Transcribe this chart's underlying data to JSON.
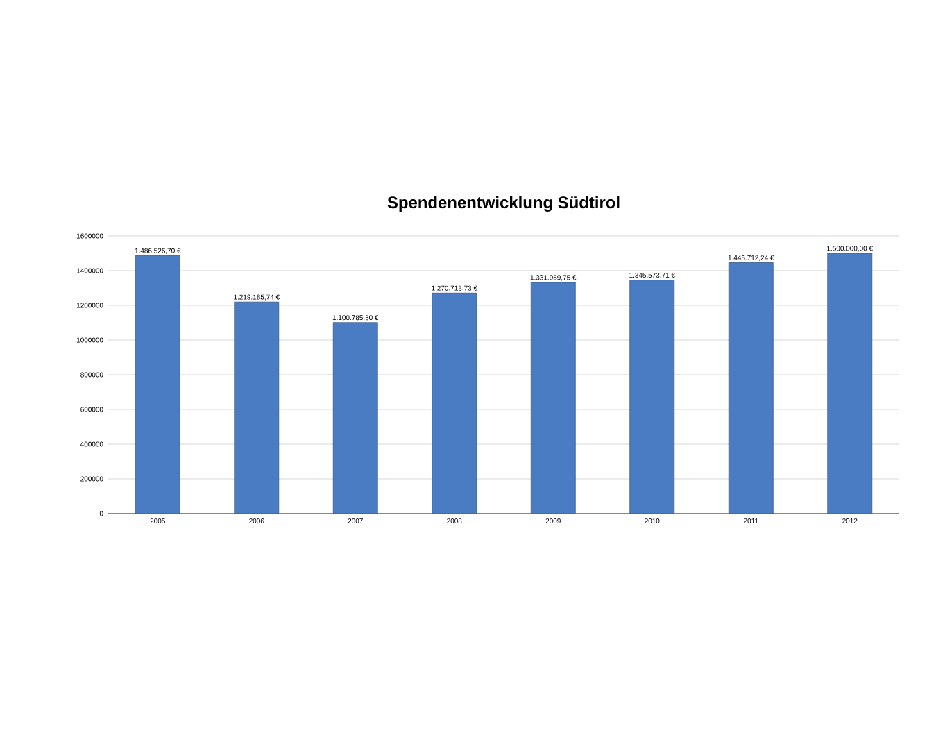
{
  "chart_data": {
    "type": "bar",
    "title": "Spendenentwicklung Südtirol",
    "categories": [
      "2005",
      "2006",
      "2007",
      "2008",
      "2009",
      "2010",
      "2011",
      "2012"
    ],
    "values": [
      1486526.7,
      1219185.74,
      1100785.3,
      1270713.73,
      1331959.75,
      1345573.71,
      1445712.24,
      1500000.0
    ],
    "value_labels": [
      "1.486.526,70 €",
      "1.219.185,74 €",
      "1.100.785,30 €",
      "1.270.713,73 €",
      "1.331.959,75 €",
      "1.345.573,71 €",
      "1.445.712,24 €",
      "1.500.000,00 €"
    ],
    "color": "#4a7cc4",
    "ylim": [
      0,
      1600000
    ],
    "yticks": [
      0,
      200000,
      400000,
      600000,
      800000,
      1000000,
      1200000,
      1400000,
      1600000
    ],
    "grid": "y"
  }
}
